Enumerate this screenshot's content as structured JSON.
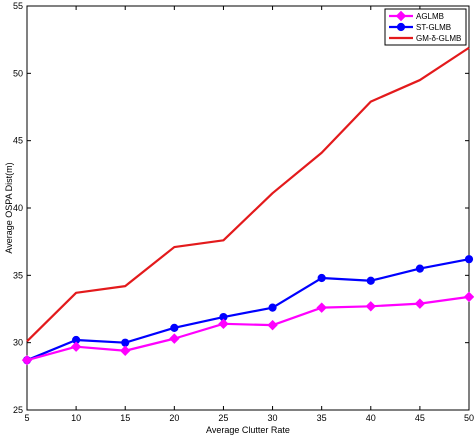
{
  "chart_data": {
    "type": "line",
    "title": "",
    "xlabel": "Average Clutter Rate",
    "ylabel": "Average OSPA Dist(m)",
    "x": [
      5,
      10,
      15,
      20,
      25,
      30,
      35,
      40,
      45,
      50
    ],
    "xlim": [
      5,
      50
    ],
    "ylim": [
      25,
      55
    ],
    "xticks": [
      5,
      10,
      15,
      20,
      25,
      30,
      35,
      40,
      45,
      50
    ],
    "yticks": [
      25,
      30,
      35,
      40,
      45,
      50,
      55
    ],
    "grid": false,
    "legend_position": "top-right",
    "series": [
      {
        "name": "AGLMB",
        "color": "#ff00ff",
        "marker": "diamond",
        "values": [
          28.7,
          29.7,
          29.4,
          30.3,
          31.4,
          31.3,
          32.6,
          32.7,
          32.9,
          33.4
        ]
      },
      {
        "name": "ST-GLMB",
        "color": "#0000ff",
        "marker": "circle",
        "values": [
          28.7,
          30.2,
          30.0,
          31.1,
          31.9,
          32.6,
          34.8,
          34.6,
          35.5,
          36.2
        ]
      },
      {
        "name": "GM-δ-GLMB",
        "color": "#e31a1c",
        "marker": "none",
        "values": [
          30.1,
          33.7,
          34.2,
          37.1,
          37.6,
          41.1,
          44.1,
          47.9,
          49.5,
          51.9
        ]
      }
    ]
  }
}
